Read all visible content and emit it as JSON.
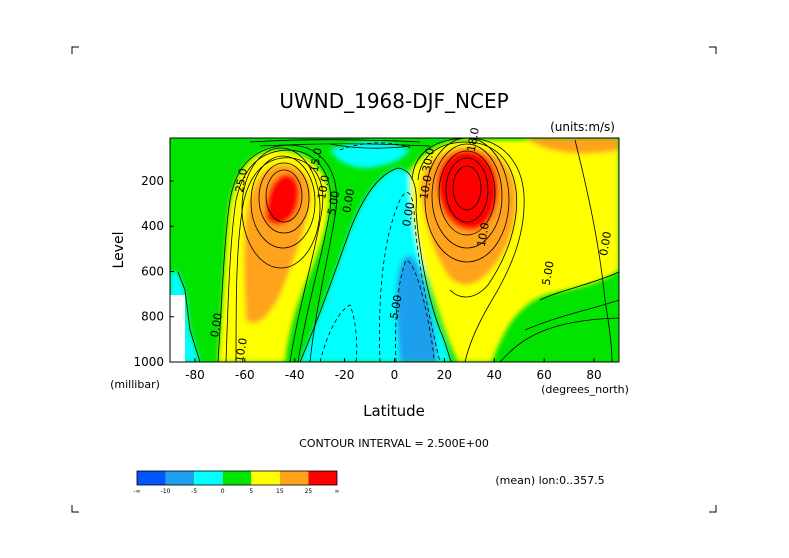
{
  "chart_data": {
    "type": "contour",
    "title": "UWND_1968-DJF_NCEP",
    "units_label": "(units:m/s)",
    "xlabel": "Latitude",
    "x_unit_label": "(degrees_north)",
    "ylabel": "Level",
    "y_unit_label": "(millibar)",
    "xlim": [
      -90,
      90
    ],
    "ylim": [
      1000,
      10
    ],
    "x_ticks": [
      -80,
      -60,
      -40,
      -20,
      0,
      20,
      40,
      60,
      80
    ],
    "y_ticks": [
      200,
      400,
      600,
      800,
      1000
    ],
    "contour_interval_text": "CONTOUR INTERVAL = 2.500E+00",
    "footnote": "(mean) lon:0..357.5",
    "colorbar": {
      "labels": [
        "-∞",
        "-10",
        "-5",
        "0",
        "5",
        "15",
        "25",
        "∞"
      ],
      "colors": [
        "#0055ff",
        "#1ea0ee",
        "#00ffff",
        "#00e400",
        "#ffff00",
        "#ffa31a",
        "#ff0000"
      ]
    },
    "features": [
      {
        "name": "southern westerly jet core",
        "lat": -45,
        "level": 250,
        "max_value": 30
      },
      {
        "name": "northern westerly jet core",
        "lat": 30,
        "level": 200,
        "max_value": 60
      },
      {
        "name": "tropical easterlies",
        "lat": 5,
        "level": 700,
        "min_value": -7.5
      }
    ],
    "contour_labels": [
      {
        "text": "25.0",
        "lat": -60,
        "level": 200
      },
      {
        "text": "15.0",
        "lat": -30,
        "level": 110
      },
      {
        "text": "10.0",
        "lat": -27,
        "level": 230
      },
      {
        "text": "5.00",
        "lat": -23,
        "level": 300
      },
      {
        "text": "0.00",
        "lat": -17,
        "level": 290
      },
      {
        "text": "0.00",
        "lat": 7,
        "level": 350
      },
      {
        "text": "0.00",
        "lat": -70,
        "level": 840
      },
      {
        "text": "10.0",
        "lat": -60,
        "level": 950
      },
      {
        "text": "5.00",
        "lat": 2,
        "level": 760
      },
      {
        "text": "30.0",
        "lat": 15,
        "level": 110
      },
      {
        "text": "10.0",
        "lat": 14,
        "level": 230
      },
      {
        "text": "10.0",
        "lat": 37,
        "level": 440
      },
      {
        "text": "18.0",
        "lat": 33,
        "level": 20
      },
      {
        "text": "5.00",
        "lat": 63,
        "level": 610
      },
      {
        "text": "0.00",
        "lat": 86,
        "level": 480
      }
    ]
  }
}
